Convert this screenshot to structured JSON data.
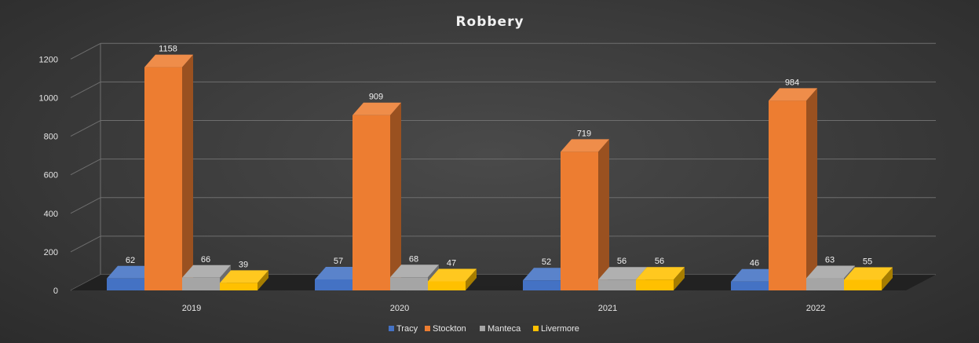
{
  "chart_data": {
    "type": "bar",
    "title": "Robbery",
    "categories": [
      "2019",
      "2020",
      "2021",
      "2022"
    ],
    "series": [
      {
        "name": "Tracy",
        "values": [
          62,
          57,
          52,
          46
        ],
        "color": "#4472c4"
      },
      {
        "name": "Stockton",
        "values": [
          1158,
          909,
          719,
          984
        ],
        "color": "#ed7d31"
      },
      {
        "name": "Manteca",
        "values": [
          66,
          68,
          56,
          63
        ],
        "color": "#a5a5a5"
      },
      {
        "name": "Livermore",
        "values": [
          39,
          47,
          56,
          55
        ],
        "color": "#ffc000"
      }
    ],
    "yticks": [
      0,
      200,
      400,
      600,
      800,
      1000,
      1200
    ],
    "ylim": [
      0,
      1300
    ],
    "grid": true,
    "legend": "bottom",
    "style": "3d-clustered-column"
  }
}
